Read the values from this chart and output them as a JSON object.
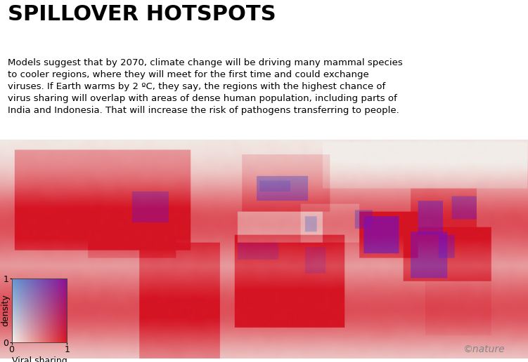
{
  "title": "SPILLOVER HOTSPOTS",
  "subtitle_lines": [
    "Models suggest that by 2070, climate change will be driving many mammal species",
    "to cooler regions, where they will meet for the first time and could exchange",
    "viruses. If Earth warms by 2 ºC, they say, the regions with the highest chance of",
    "virus sharing will overlap with areas of dense human population, including parts of",
    "India and Indonesia. That will increase the risk of pathogens transferring to people."
  ],
  "xlabel": "Viral sharing",
  "ylabel": "Population\ndensity",
  "legend_x_ticks": [
    "0",
    "1"
  ],
  "legend_y_ticks": [
    "0",
    "1"
  ],
  "watermark": "©nature",
  "background_color": "#ffffff",
  "ocean_color": "#ffffff",
  "title_fontsize": 22,
  "subtitle_fontsize": 9.5,
  "legend_fontsize": 9,
  "c00": [
    0.97,
    0.94,
    0.91
  ],
  "c10": [
    0.85,
    0.08,
    0.12
  ],
  "c01": [
    0.38,
    0.6,
    0.82
  ],
  "c11": [
    0.55,
    0.06,
    0.6
  ]
}
